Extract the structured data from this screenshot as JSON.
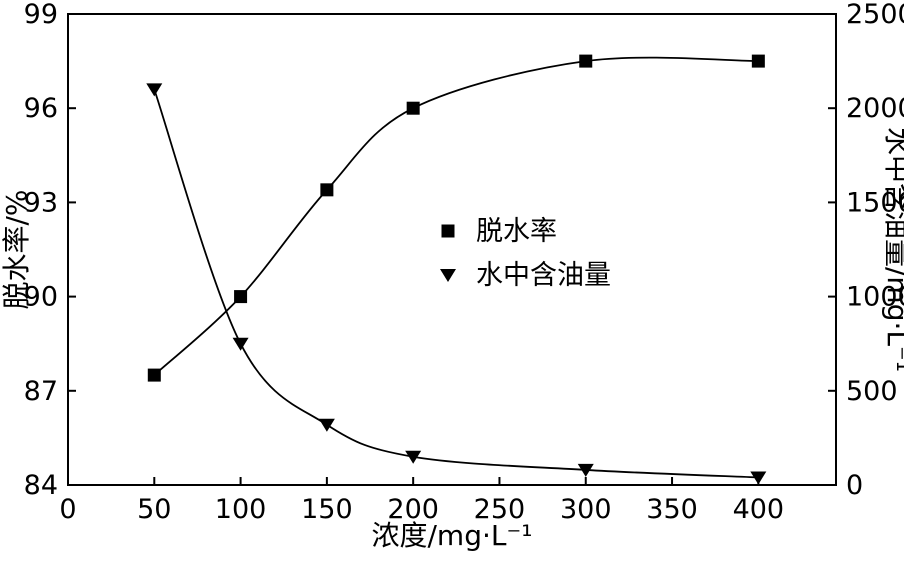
{
  "chart_data": {
    "type": "line",
    "title": "",
    "xlabel": "浓度/mg·L⁻¹",
    "ylabel_left": "脱水率/%",
    "ylabel_right": "水中含油量/mg·L⁻¹",
    "xlim": [
      0,
      445
    ],
    "x_ticks": [
      0,
      50,
      100,
      150,
      200,
      250,
      300,
      350,
      400
    ],
    "ylim_left": [
      84,
      99
    ],
    "y_ticks_left": [
      84,
      87,
      90,
      93,
      96,
      99
    ],
    "ylim_right": [
      0,
      2500
    ],
    "y_ticks_right": [
      0,
      500,
      1000,
      1500,
      2000,
      2500
    ],
    "grid": false,
    "legend_position": "inside-center-right",
    "line_color": "#000000",
    "background_color": "#ffffff",
    "series": [
      {
        "name": "脱水率",
        "axis": "left",
        "marker": "square",
        "x": [
          50,
          100,
          150,
          200,
          300,
          400
        ],
        "y": [
          87.5,
          90.0,
          93.4,
          96.0,
          97.5,
          97.5
        ]
      },
      {
        "name": "水中含油量",
        "axis": "right",
        "marker": "triangle-down",
        "x": [
          50,
          100,
          150,
          200,
          300,
          400
        ],
        "y": [
          2100,
          750,
          320,
          150,
          80,
          40
        ]
      }
    ]
  }
}
